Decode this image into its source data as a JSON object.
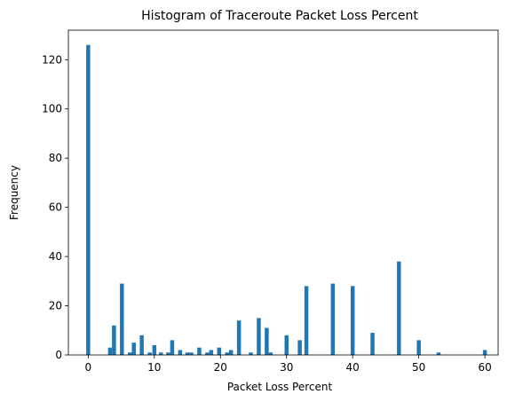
{
  "chart_data": {
    "type": "bar",
    "title": "Histogram of Traceroute Packet Loss Percent",
    "xlabel": "Packet Loss Percent",
    "ylabel": "Frequency",
    "xlim": [
      -3,
      62
    ],
    "ylim": [
      0,
      132
    ],
    "xticks": [
      0,
      10,
      20,
      30,
      40,
      50,
      60
    ],
    "yticks": [
      0,
      20,
      40,
      60,
      80,
      100,
      120
    ],
    "bin_width": 0.6,
    "grid": false,
    "bar_color": "#1f77b4",
    "bins": [
      {
        "x": 0,
        "count": 126
      },
      {
        "x": 3.3,
        "count": 3
      },
      {
        "x": 3.9,
        "count": 12
      },
      {
        "x": 5.1,
        "count": 29
      },
      {
        "x": 6.3,
        "count": 1
      },
      {
        "x": 6.9,
        "count": 5
      },
      {
        "x": 8.1,
        "count": 8
      },
      {
        "x": 9.3,
        "count": 1
      },
      {
        "x": 10.0,
        "count": 4
      },
      {
        "x": 11.0,
        "count": 1
      },
      {
        "x": 12.1,
        "count": 1
      },
      {
        "x": 12.7,
        "count": 6
      },
      {
        "x": 13.9,
        "count": 2
      },
      {
        "x": 15.0,
        "count": 1
      },
      {
        "x": 15.6,
        "count": 1
      },
      {
        "x": 16.8,
        "count": 3
      },
      {
        "x": 18.0,
        "count": 1
      },
      {
        "x": 18.6,
        "count": 2
      },
      {
        "x": 19.8,
        "count": 3
      },
      {
        "x": 21.0,
        "count": 1
      },
      {
        "x": 21.6,
        "count": 2
      },
      {
        "x": 22.8,
        "count": 14
      },
      {
        "x": 24.6,
        "count": 1
      },
      {
        "x": 25.8,
        "count": 15
      },
      {
        "x": 27.0,
        "count": 11
      },
      {
        "x": 27.6,
        "count": 1
      },
      {
        "x": 30.0,
        "count": 8
      },
      {
        "x": 32.0,
        "count": 6
      },
      {
        "x": 33.0,
        "count": 28
      },
      {
        "x": 37.0,
        "count": 29
      },
      {
        "x": 40.0,
        "count": 28
      },
      {
        "x": 43.0,
        "count": 9
      },
      {
        "x": 47.0,
        "count": 38
      },
      {
        "x": 50.0,
        "count": 6
      },
      {
        "x": 53.0,
        "count": 1
      },
      {
        "x": 60.0,
        "count": 2
      }
    ]
  }
}
